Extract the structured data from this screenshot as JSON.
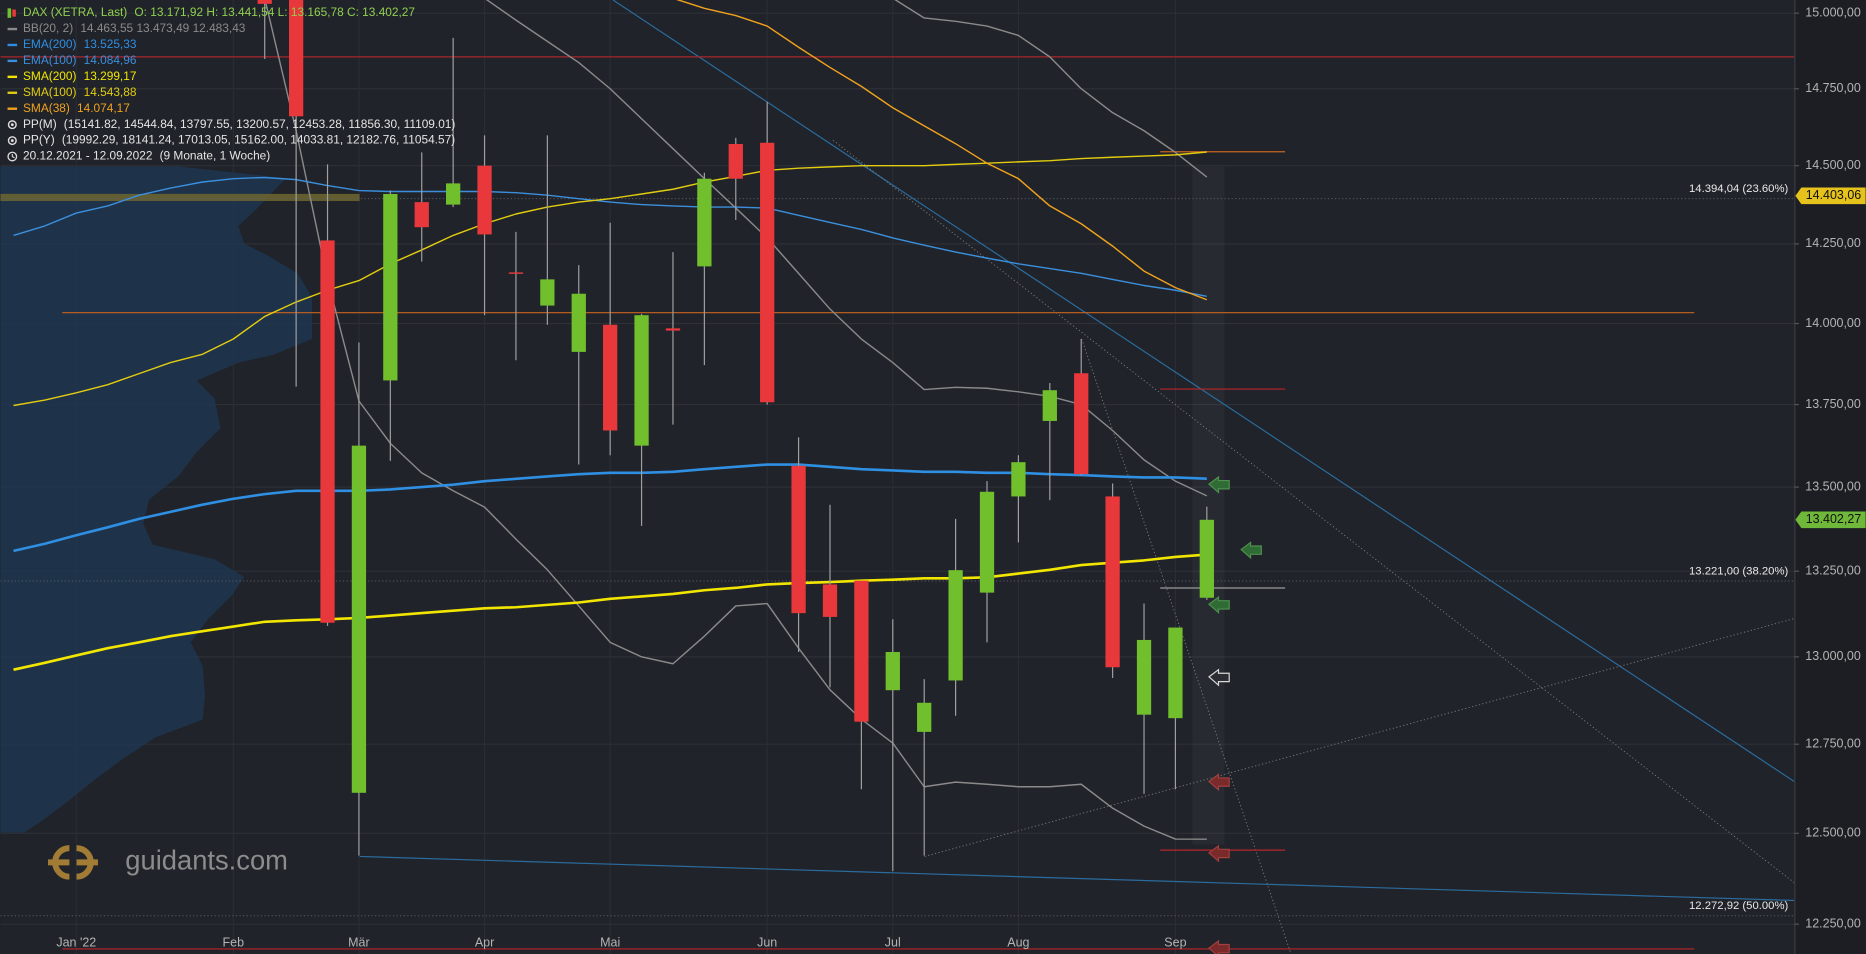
{
  "chart_data": {
    "type": "candlestick",
    "log_scale": true,
    "grid": true,
    "ylim": [
      12169,
      15044
    ],
    "yticks": [
      {
        "value": 12250,
        "label": "12.250,00"
      },
      {
        "value": 12500,
        "label": "12.500,00"
      },
      {
        "value": 12750,
        "label": "12.750,00"
      },
      {
        "value": 13000,
        "label": "13.000,00"
      },
      {
        "value": 13250,
        "label": "13.250,00"
      },
      {
        "value": 13500,
        "label": "13.500,00"
      },
      {
        "value": 13750,
        "label": "13.750,00"
      },
      {
        "value": 14000,
        "label": "14.000,00"
      },
      {
        "value": 14250,
        "label": "14.250,00"
      },
      {
        "value": 14500,
        "label": "14.500,00"
      },
      {
        "value": 14750,
        "label": "14.750,00"
      },
      {
        "value": 15000,
        "label": "15.000,00"
      }
    ],
    "categories": [
      null,
      null,
      "Jan '22",
      null,
      null,
      null,
      null,
      "Feb",
      null,
      null,
      null,
      "Mär",
      null,
      null,
      null,
      "Apr",
      null,
      null,
      null,
      "Mai",
      null,
      null,
      null,
      null,
      "Jun",
      null,
      null,
      null,
      "Jul",
      null,
      null,
      null,
      "Aug",
      null,
      null,
      null,
      null,
      "Sep",
      null
    ],
    "series": [
      {
        "name": "DAX (XETRA, Last)",
        "ohlc_label": "O: 13.171,92   H: 13.441,54   L: 13.165,78   C: 13.402,27",
        "up_color": "#72bf2e",
        "down_color": "#e8383b",
        "open": [
          null,
          null,
          null,
          null,
          null,
          null,
          null,
          null,
          15080,
          15090,
          14261,
          12613,
          13824,
          14383,
          14375,
          14500,
          14160,
          14056,
          13912,
          13996,
          13625,
          13985,
          14179,
          14570,
          14574,
          13564,
          13211,
          13222,
          12904,
          12785,
          12932,
          13187,
          13472,
          13700,
          13846,
          13472,
          12834,
          12824,
          13171.92
        ],
        "high": [
          null,
          null,
          null,
          null,
          null,
          null,
          null,
          null,
          15120,
          15150,
          14504,
          13941,
          14420,
          14543,
          14918,
          14598,
          14288,
          14598,
          14183,
          14317,
          14030,
          14224,
          14477,
          14590,
          14707,
          13650,
          13447,
          13222,
          13109,
          12936,
          13405,
          13518,
          13596,
          13816,
          13952,
          13511,
          13155,
          13085,
          13441.54
        ],
        "low": [
          null,
          null,
          null,
          null,
          null,
          null,
          null,
          null,
          14848,
          13805,
          13090,
          12438,
          13579,
          14194,
          14367,
          14026,
          13886,
          13996,
          13568,
          13596,
          13384,
          13689,
          13871,
          14326,
          13750,
          13014,
          12912,
          12623,
          12395,
          12438,
          12831,
          13042,
          13335,
          13461,
          13535,
          12939,
          12610,
          12623,
          13165.78
        ],
        "close": [
          null,
          null,
          null,
          null,
          null,
          null,
          null,
          null,
          15031,
          14660,
          13099,
          13625,
          14409,
          14303,
          14443,
          14280,
          14157,
          14138,
          14093,
          13671,
          14026,
          13978,
          14458,
          14458,
          13757,
          13127,
          13116,
          12814,
          13014,
          12868,
          13253,
          13486,
          13575,
          13794,
          13539,
          12970,
          13049,
          13085,
          13402.27
        ]
      }
    ],
    "overlays": [
      {
        "name": "BB(20, 2)",
        "legend_value": "14.463,55   13.473,49   12.483,43",
        "color": "#8a8a8a",
        "width": 1.2,
        "lines": [
          [
            null,
            null,
            null,
            null,
            null,
            null,
            null,
            null,
            null,
            null,
            null,
            null,
            null,
            null,
            null,
            null,
            null,
            null,
            null,
            null,
            null,
            null,
            null,
            null,
            null,
            null,
            null,
            null,
            15050,
            14984,
            14973,
            14957,
            14926,
            14855,
            14750,
            14672,
            14613,
            14543,
            14463.55
          ],
          [
            null,
            null,
            null,
            null,
            null,
            null,
            null,
            null,
            null,
            null,
            null,
            null,
            null,
            null,
            null,
            15050,
            14977,
            14906,
            14836,
            14750,
            14652,
            14555,
            14458,
            14364,
            14269,
            14157,
            14045,
            13952,
            13879,
            13796,
            13803,
            13800,
            13789,
            13775,
            13750,
            13671,
            13582,
            13518,
            13473.49
          ],
          [
            null,
            null,
            null,
            null,
            null,
            null,
            null,
            null,
            15050,
            14613,
            14138,
            13761,
            13632,
            13543,
            13489,
            13440,
            13345,
            13254,
            13148,
            13042,
            13000,
            12980,
            13060,
            13148,
            13155,
            13025,
            12905,
            12821,
            12753,
            12630,
            12643,
            12637,
            12630,
            12630,
            12637,
            12570,
            12520,
            12484,
            12483.43
          ]
        ]
      },
      {
        "name": "EMA(200)",
        "legend_value": "13.525,33",
        "color": "#2f8fe2",
        "width": 2.2,
        "values": [
          13310,
          13331,
          13356,
          13380,
          13405,
          13426,
          13447,
          13465,
          13479,
          13489,
          13489,
          13489,
          13493,
          13500,
          13507,
          13518,
          13525,
          13532,
          13539,
          13543,
          13543,
          13546,
          13554,
          13561,
          13568,
          13568,
          13561,
          13554,
          13550,
          13546,
          13546,
          13543,
          13543,
          13539,
          13536,
          13532,
          13529,
          13529,
          13525.33
        ]
      },
      {
        "name": "EMA(100)",
        "legend_value": "14.084,96",
        "color": "#3b8fdc",
        "width": 1.2,
        "values": [
          14277,
          14307,
          14348,
          14371,
          14405,
          14428,
          14447,
          14458,
          14462,
          14455,
          14436,
          14420,
          14417,
          14417,
          14417,
          14417,
          14413,
          14405,
          14394,
          14383,
          14375,
          14371,
          14367,
          14367,
          14364,
          14341,
          14318,
          14296,
          14269,
          14246,
          14224,
          14205,
          14187,
          14172,
          14157,
          14138,
          14119,
          14104,
          14084.96
        ]
      },
      {
        "name": "SMA(200)",
        "legend_value": "13.299,17",
        "color": "#f2e600",
        "width": 2.2,
        "values": [
          12963,
          12983,
          13004,
          13025,
          13042,
          13060,
          13074,
          13088,
          13102,
          13106,
          13109,
          13113,
          13120,
          13127,
          13134,
          13141,
          13144,
          13151,
          13158,
          13169,
          13176,
          13183,
          13194,
          13201,
          13211,
          13215,
          13218,
          13222,
          13225,
          13229,
          13229,
          13232,
          13243,
          13254,
          13268,
          13275,
          13282,
          13292,
          13299.17
        ]
      },
      {
        "name": "SMA(100)",
        "legend_value": "14.543,88",
        "color": "#e2cc10",
        "width": 1.2,
        "values": [
          13747,
          13764,
          13786,
          13811,
          13845,
          13879,
          13904,
          13952,
          14022,
          14067,
          14104,
          14134,
          14187,
          14231,
          14277,
          14314,
          14345,
          14367,
          14383,
          14394,
          14409,
          14424,
          14447,
          14466,
          14485,
          14492,
          14496,
          14500,
          14500,
          14500,
          14504,
          14508,
          14512,
          14516,
          14523,
          14527,
          14531,
          14535,
          14543.88
        ]
      },
      {
        "name": "SMA(38)",
        "legend_value": "14.074,17",
        "color": "#f0a21e",
        "width": 1.2,
        "values": [
          null,
          null,
          null,
          null,
          null,
          null,
          null,
          null,
          null,
          null,
          null,
          null,
          null,
          null,
          null,
          null,
          null,
          null,
          null,
          null,
          null,
          15050,
          15016,
          14992,
          14957,
          14887,
          14820,
          14758,
          14688,
          14629,
          14571,
          14508,
          14458,
          14371,
          14314,
          14243,
          14164,
          14112,
          14074.17
        ]
      }
    ],
    "pivots": [
      {
        "name": "PP(M)",
        "detail": "(15141.82, 14544.84, 13797.55, 13200.57, 12453.28, 11856.30, 11109.01)",
        "levels": [
          14544.84,
          13797.55,
          13200.57,
          12453.28
        ],
        "level_colors": [
          "#c8641e",
          "#b8262b",
          "#9a9a9a",
          "#b8262b"
        ]
      },
      {
        "name": "PP(Y)",
        "detail": "(19992.29, 18141.24, 17013.05, 15162.00, 14033.81, 12182.76, 11054.57)",
        "levels": [
          14033.81,
          12182.76
        ],
        "level_colors": [
          "#c8641e",
          "#b8262b"
        ]
      }
    ],
    "period": "20.12.2021 - 12.09.2022",
    "period_detail": "(9 Monate, 1 Woche)",
    "levels": [
      {
        "value": 14855,
        "color": "#a8262b"
      }
    ],
    "fib_levels": [
      {
        "value": 14394.04,
        "label": "14.394,04 (23.60%)"
      },
      {
        "value": 13221.0,
        "label": "13.221,00 (38.20%)"
      },
      {
        "value": 12272.92,
        "label": "12.272,92 (50.00%)"
      }
    ],
    "price_tags": [
      {
        "value": 14403.06,
        "label": "14.403,06",
        "color": "#e6c21c"
      },
      {
        "value": 13402.27,
        "label": "13.402,27",
        "color": "#6fb83a"
      }
    ],
    "watermark": "guidants.com"
  }
}
